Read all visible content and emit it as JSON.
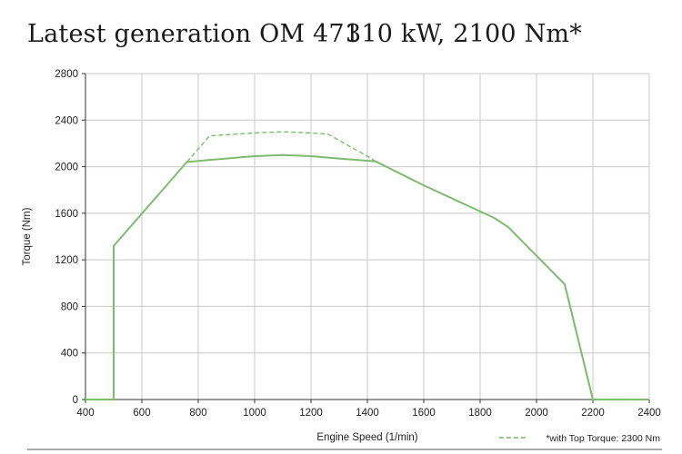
{
  "header": {
    "title_left": "Latest generation OM 471",
    "title_right": "310 kW, 2100 Nm*"
  },
  "colors": {
    "series": "#7dbb6e",
    "grid": "#c8c8c8",
    "axis": "#333333",
    "rule": "#555555"
  },
  "chart_data": {
    "type": "line",
    "xlabel": "Engine Speed (1/min)",
    "ylabel": "Torque (Nm)",
    "xlim": [
      400,
      2400
    ],
    "ylim": [
      0,
      2800
    ],
    "xticks": [
      400,
      600,
      800,
      1000,
      1200,
      1400,
      1600,
      1800,
      2000,
      2200,
      2400
    ],
    "yticks": [
      0,
      400,
      800,
      1200,
      1600,
      2000,
      2400,
      2800
    ],
    "grid": true,
    "legend": {
      "placement": "bottom-right",
      "entries": [
        "*with Top Torque: 2300 Nm"
      ]
    },
    "series": [
      {
        "style": "solid",
        "points": [
          [
            400,
            0
          ],
          [
            500,
            0
          ],
          [
            500,
            1320
          ],
          [
            760,
            2040
          ],
          [
            850,
            2060
          ],
          [
            1000,
            2090
          ],
          [
            1100,
            2100
          ],
          [
            1200,
            2090
          ],
          [
            1300,
            2070
          ],
          [
            1430,
            2045
          ],
          [
            1600,
            1840
          ],
          [
            1850,
            1560
          ],
          [
            1900,
            1480
          ],
          [
            2100,
            990
          ],
          [
            2200,
            0
          ],
          [
            2400,
            0
          ]
        ]
      },
      {
        "name": "*with Top Torque: 2300 Nm",
        "style": "dashed",
        "points": [
          [
            760,
            2040
          ],
          [
            840,
            2265
          ],
          [
            1000,
            2290
          ],
          [
            1100,
            2300
          ],
          [
            1200,
            2290
          ],
          [
            1260,
            2280
          ],
          [
            1400,
            2090
          ],
          [
            1430,
            2045
          ]
        ]
      }
    ]
  }
}
